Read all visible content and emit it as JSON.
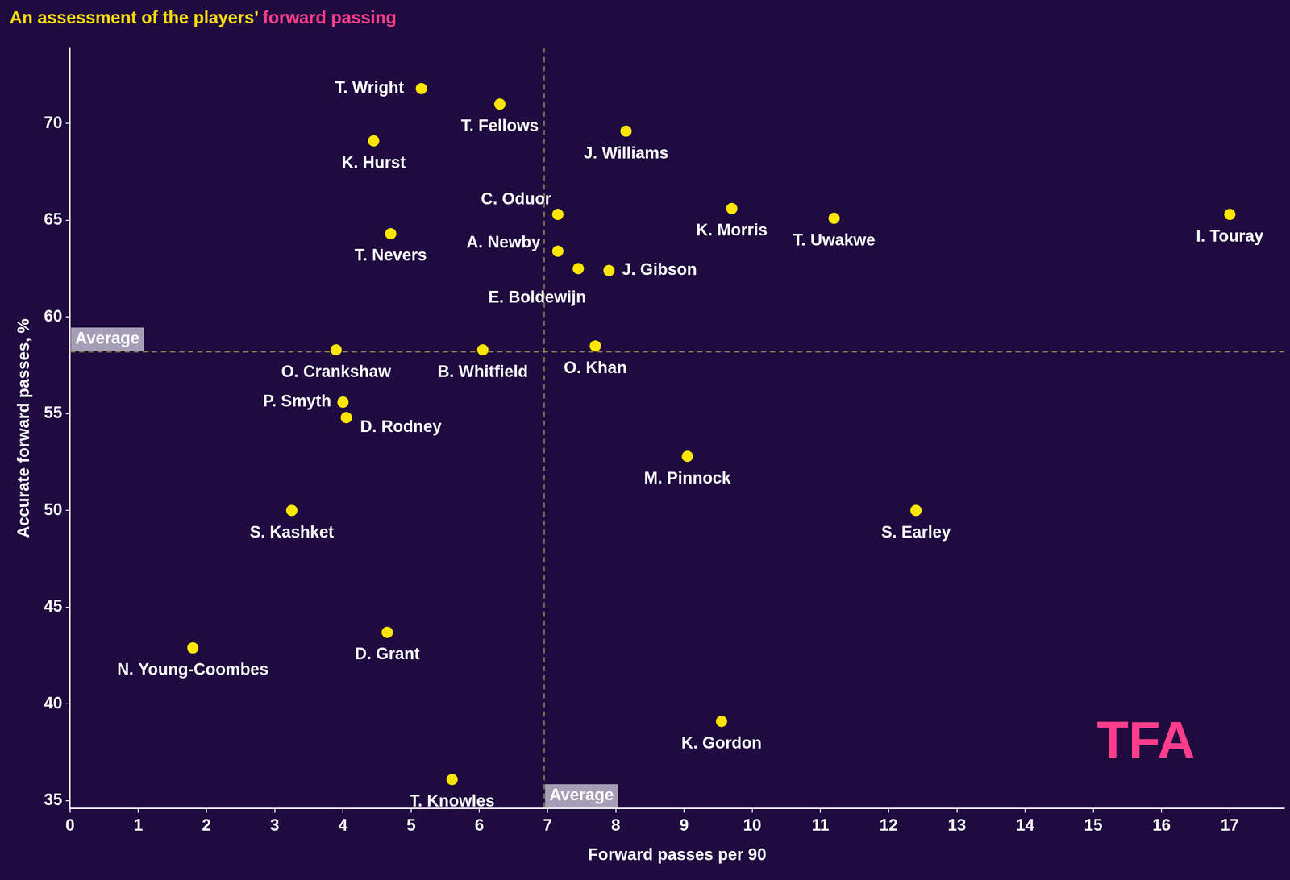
{
  "chart_data": {
    "type": "scatter",
    "title": "An assessment of the players’ forward passing",
    "title_highlight": "forward passing",
    "x_label": "Forward passes per 90",
    "y_label": "Accurate forward passes, %",
    "point_labels": [
      "T. Wright",
      "T. Fellows",
      "K. Hurst",
      "J. Williams",
      "C. Oduor",
      "K. Morris",
      "T. Uwakwe",
      "I. Touray",
      "T. Nevers",
      "A. Newby",
      "E. Boldewijn",
      "J. Gibson",
      "O. Crankshaw",
      "B. Whitfield",
      "O. Khan",
      "P. Smyth",
      "D. Rodney",
      "M. Pinnock",
      "S. Kashket",
      "S. Earley",
      "N. Young-Coombes",
      "D. Grant",
      "K. Gordon",
      "T. Knowles"
    ],
    "x": [
      5.15,
      6.3,
      4.45,
      8.15,
      7.15,
      9.7,
      11.2,
      17.0,
      4.7,
      7.15,
      7.45,
      7.9,
      3.9,
      6.05,
      7.7,
      4.0,
      4.05,
      9.05,
      3.25,
      12.4,
      1.8,
      4.65,
      9.55,
      5.6
    ],
    "values": [
      71.8,
      71.0,
      69.1,
      69.6,
      65.3,
      65.6,
      65.1,
      65.3,
      64.3,
      63.4,
      62.5,
      62.4,
      58.3,
      58.3,
      58.5,
      55.6,
      54.8,
      52.8,
      50.0,
      50.0,
      42.9,
      43.7,
      39.1,
      36.1
    ],
    "color": "#ffe600",
    "marker": "circle",
    "xlim": [
      0,
      17.8
    ],
    "xticks": [
      0,
      1,
      2,
      3,
      4,
      5,
      6,
      7,
      8,
      9,
      10,
      11,
      12,
      13,
      14,
      15,
      16,
      17
    ],
    "ylim": [
      34.6,
      73.9
    ],
    "yticks": [
      35,
      40,
      45,
      50,
      55,
      60,
      65,
      70
    ],
    "grid": false,
    "reference_lines": {
      "x": 6.95,
      "y": 58.2,
      "label": "Average"
    },
    "watermark": "TFA"
  }
}
